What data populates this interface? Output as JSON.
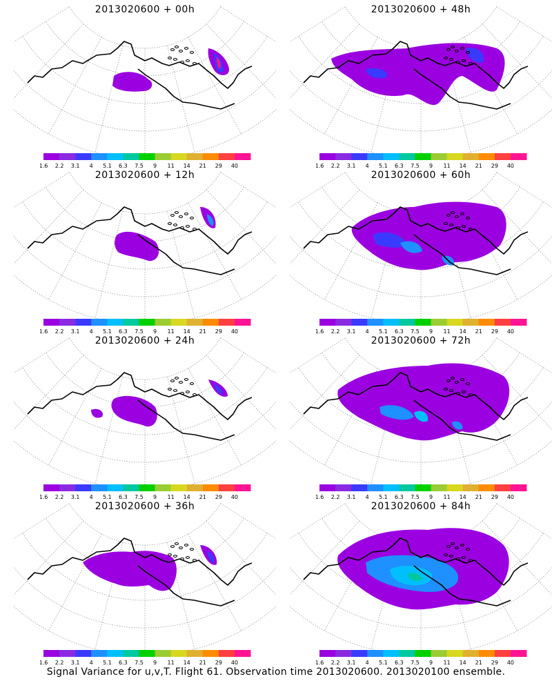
{
  "panels": [
    {
      "title": "2013020600 + 00h",
      "blobs": []
    },
    {
      "title": "2013020600 + 48h",
      "blobs": []
    },
    {
      "title": "2013020600 + 12h",
      "blobs": []
    },
    {
      "title": "2013020600 + 60h",
      "blobs": []
    },
    {
      "title": "2013020600 + 24h",
      "blobs": []
    },
    {
      "title": "2013020600 + 72h",
      "blobs": []
    },
    {
      "title": "2013020600 + 36h",
      "blobs": []
    },
    {
      "title": "2013020600 + 84h",
      "blobs": []
    }
  ],
  "colorbar": {
    "colors": [
      "#9b00e0",
      "#8a2be2",
      "#3a3aff",
      "#1e90ff",
      "#00bfff",
      "#00c8a0",
      "#00d000",
      "#9acd32",
      "#d8d820",
      "#e0b030",
      "#ff8c00",
      "#ff4040",
      "#ff1493"
    ],
    "labels": [
      "1.6",
      "2.2",
      "3.1",
      "4",
      "5.1",
      "6.3",
      "7.5",
      "9",
      "11",
      "14",
      "21",
      "29",
      "40"
    ]
  },
  "footer": "Signal Variance for u,v,T. Flight 61. Observation time 2013020600. 2013020100 ensemble."
}
